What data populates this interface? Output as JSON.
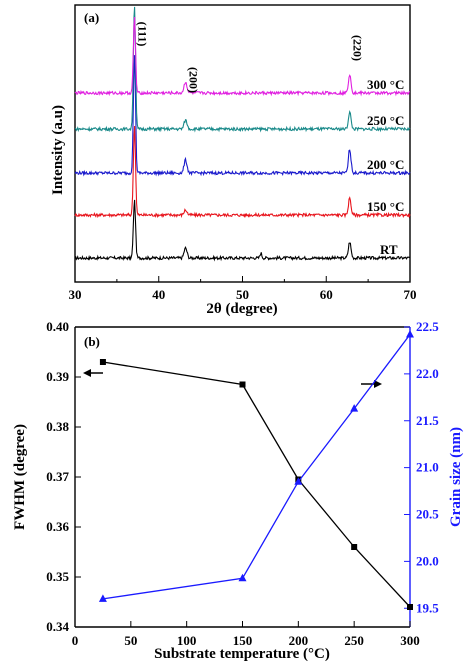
{
  "chart_data": [
    {
      "type": "line",
      "panel_label": "(a)",
      "xlabel": "2θ (degree)",
      "ylabel": "Intensity (a.u)",
      "xlim": [
        30,
        70
      ],
      "xticks": [
        30,
        40,
        50,
        60,
        70
      ],
      "peak_labels": [
        {
          "text": "(111)",
          "x": 37.1
        },
        {
          "text": "(200)",
          "x": 43.2
        },
        {
          "text": "(220)",
          "x": 62.8
        }
      ],
      "series": [
        {
          "name": "RT",
          "color": "#000000"
        },
        {
          "name": "150 °C",
          "color": "#e8141c"
        },
        {
          "name": "200 °C",
          "color": "#1a1acc"
        },
        {
          "name": "250 °C",
          "color": "#1a8a8a"
        },
        {
          "name": "300 °C",
          "color": "#e020e0"
        }
      ]
    },
    {
      "type": "line",
      "panel_label": "(b)",
      "xlabel": "Substrate temperature (°C)",
      "ylabel": "FWHM (degree)",
      "y2label": "Grain size (nm)",
      "xlim": [
        0,
        300
      ],
      "xticks": [
        0,
        50,
        100,
        150,
        200,
        250,
        300
      ],
      "ylim": [
        0.34,
        0.4
      ],
      "yticks": [
        "0.34",
        "0.35",
        "0.36",
        "0.37",
        "0.38",
        "0.39",
        "0.40"
      ],
      "y2lim": [
        19.3,
        22.5
      ],
      "y2ticks": [
        "19.5",
        "20.0",
        "20.5",
        "21.0",
        "21.5",
        "22.0",
        "22.5"
      ],
      "x": [
        25,
        150,
        200,
        250,
        300
      ],
      "series": [
        {
          "axis": "left",
          "color": "#000000",
          "marker": "square",
          "values": [
            0.393,
            0.3885,
            0.3695,
            0.356,
            0.344
          ]
        },
        {
          "axis": "right",
          "color": "#1a1aff",
          "marker": "triangle",
          "values": [
            19.6,
            19.82,
            20.85,
            21.63,
            22.42
          ]
        }
      ]
    }
  ]
}
